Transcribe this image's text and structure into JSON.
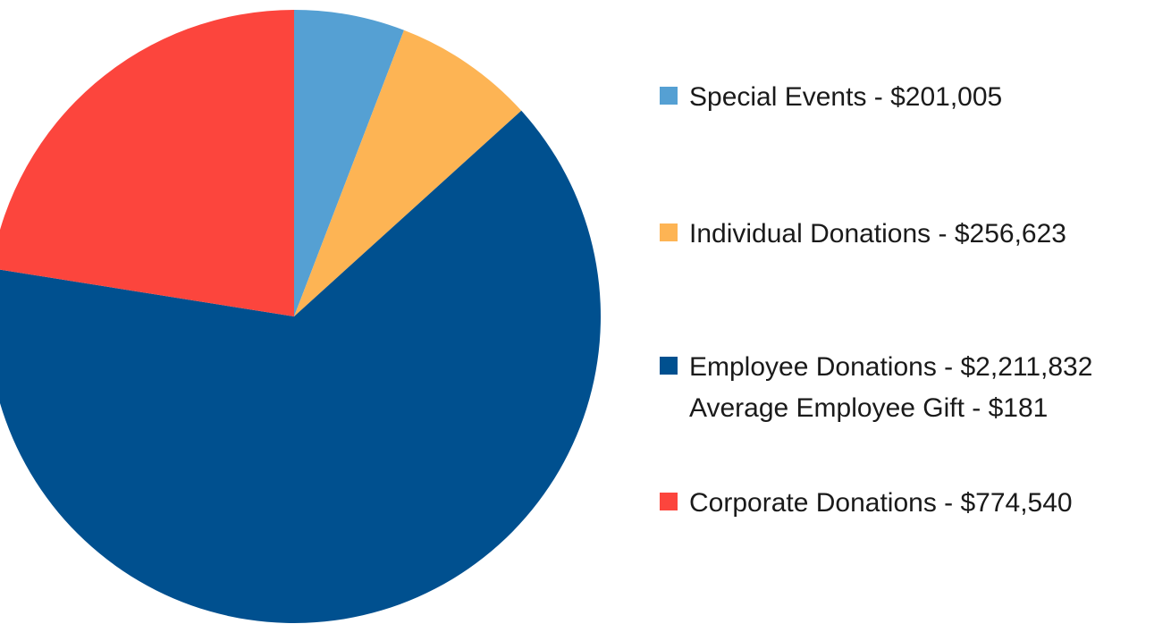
{
  "chart_data": {
    "type": "pie",
    "title": "",
    "start": "top",
    "direction": "clockwise",
    "legend_position": "right",
    "slices": [
      {
        "label": "Special Events - $201,005",
        "value": 201005,
        "color": "#55a0d3"
      },
      {
        "label": "Individual Donations - $256,623",
        "value": 256623,
        "color": "#fdb454"
      },
      {
        "label": "Employee Donations - $2,211,832",
        "value": 2211832,
        "color": "#00508f",
        "sublabel": "Average Employee Gift - $181"
      },
      {
        "label": "Corporate Donations - $774,540",
        "value": 774540,
        "color": "#fc453d"
      }
    ]
  }
}
